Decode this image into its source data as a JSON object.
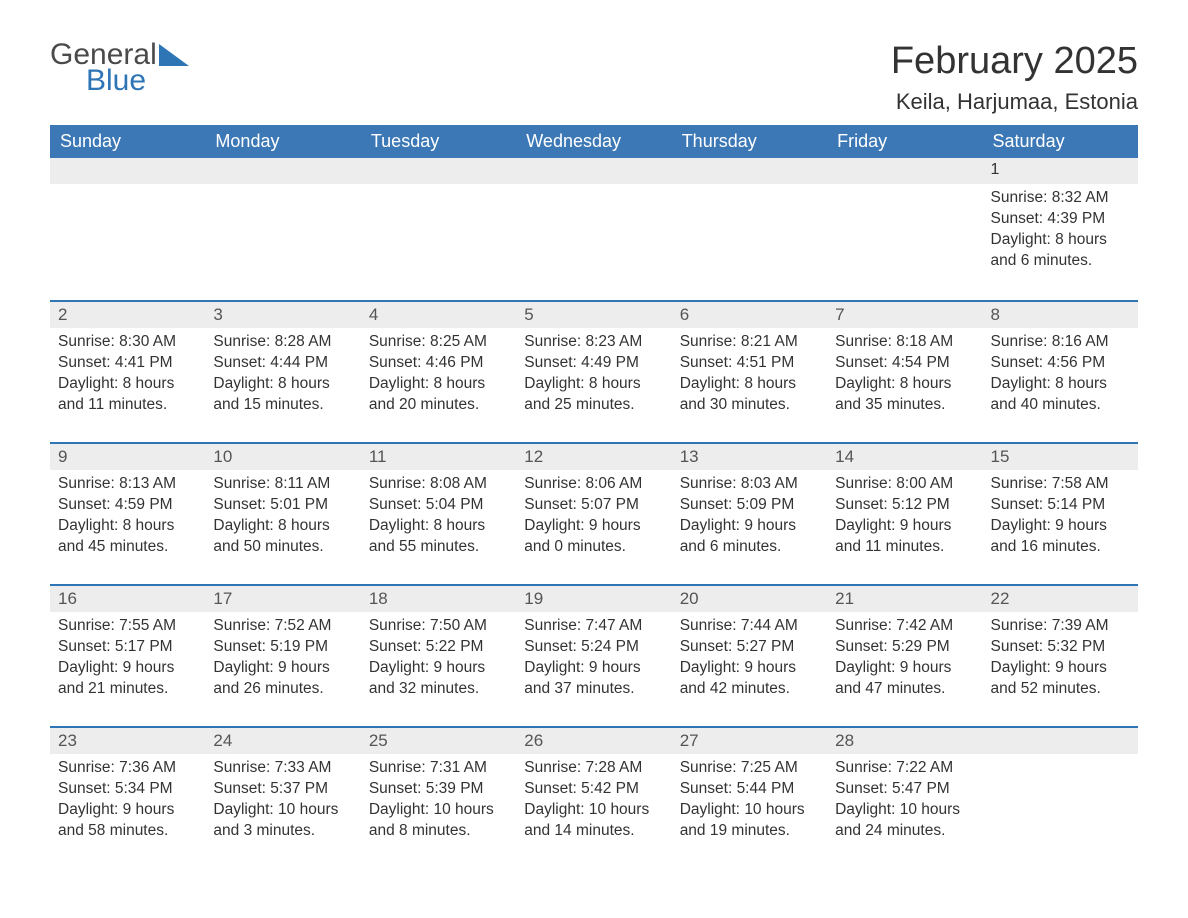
{
  "logo": {
    "word1": "General",
    "word2": "Blue"
  },
  "title": "February 2025",
  "location": "Keila, Harjumaa, Estonia",
  "colors": {
    "header_bg": "#3b78b5",
    "header_text": "#ffffff",
    "daybar_bg": "#ededed",
    "daybar_border": "#2e75b6",
    "body_text": "#333333",
    "page_bg": "#ffffff"
  },
  "weekdays": [
    "Sunday",
    "Monday",
    "Tuesday",
    "Wednesday",
    "Thursday",
    "Friday",
    "Saturday"
  ],
  "weeks": [
    [
      null,
      null,
      null,
      null,
      null,
      null,
      {
        "n": "1",
        "sunrise": "8:32 AM",
        "sunset": "4:39 PM",
        "daylight": "8 hours and 6 minutes."
      }
    ],
    [
      {
        "n": "2",
        "sunrise": "8:30 AM",
        "sunset": "4:41 PM",
        "daylight": "8 hours and 11 minutes."
      },
      {
        "n": "3",
        "sunrise": "8:28 AM",
        "sunset": "4:44 PM",
        "daylight": "8 hours and 15 minutes."
      },
      {
        "n": "4",
        "sunrise": "8:25 AM",
        "sunset": "4:46 PM",
        "daylight": "8 hours and 20 minutes."
      },
      {
        "n": "5",
        "sunrise": "8:23 AM",
        "sunset": "4:49 PM",
        "daylight": "8 hours and 25 minutes."
      },
      {
        "n": "6",
        "sunrise": "8:21 AM",
        "sunset": "4:51 PM",
        "daylight": "8 hours and 30 minutes."
      },
      {
        "n": "7",
        "sunrise": "8:18 AM",
        "sunset": "4:54 PM",
        "daylight": "8 hours and 35 minutes."
      },
      {
        "n": "8",
        "sunrise": "8:16 AM",
        "sunset": "4:56 PM",
        "daylight": "8 hours and 40 minutes."
      }
    ],
    [
      {
        "n": "9",
        "sunrise": "8:13 AM",
        "sunset": "4:59 PM",
        "daylight": "8 hours and 45 minutes."
      },
      {
        "n": "10",
        "sunrise": "8:11 AM",
        "sunset": "5:01 PM",
        "daylight": "8 hours and 50 minutes."
      },
      {
        "n": "11",
        "sunrise": "8:08 AM",
        "sunset": "5:04 PM",
        "daylight": "8 hours and 55 minutes."
      },
      {
        "n": "12",
        "sunrise": "8:06 AM",
        "sunset": "5:07 PM",
        "daylight": "9 hours and 0 minutes."
      },
      {
        "n": "13",
        "sunrise": "8:03 AM",
        "sunset": "5:09 PM",
        "daylight": "9 hours and 6 minutes."
      },
      {
        "n": "14",
        "sunrise": "8:00 AM",
        "sunset": "5:12 PM",
        "daylight": "9 hours and 11 minutes."
      },
      {
        "n": "15",
        "sunrise": "7:58 AM",
        "sunset": "5:14 PM",
        "daylight": "9 hours and 16 minutes."
      }
    ],
    [
      {
        "n": "16",
        "sunrise": "7:55 AM",
        "sunset": "5:17 PM",
        "daylight": "9 hours and 21 minutes."
      },
      {
        "n": "17",
        "sunrise": "7:52 AM",
        "sunset": "5:19 PM",
        "daylight": "9 hours and 26 minutes."
      },
      {
        "n": "18",
        "sunrise": "7:50 AM",
        "sunset": "5:22 PM",
        "daylight": "9 hours and 32 minutes."
      },
      {
        "n": "19",
        "sunrise": "7:47 AM",
        "sunset": "5:24 PM",
        "daylight": "9 hours and 37 minutes."
      },
      {
        "n": "20",
        "sunrise": "7:44 AM",
        "sunset": "5:27 PM",
        "daylight": "9 hours and 42 minutes."
      },
      {
        "n": "21",
        "sunrise": "7:42 AM",
        "sunset": "5:29 PM",
        "daylight": "9 hours and 47 minutes."
      },
      {
        "n": "22",
        "sunrise": "7:39 AM",
        "sunset": "5:32 PM",
        "daylight": "9 hours and 52 minutes."
      }
    ],
    [
      {
        "n": "23",
        "sunrise": "7:36 AM",
        "sunset": "5:34 PM",
        "daylight": "9 hours and 58 minutes."
      },
      {
        "n": "24",
        "sunrise": "7:33 AM",
        "sunset": "5:37 PM",
        "daylight": "10 hours and 3 minutes."
      },
      {
        "n": "25",
        "sunrise": "7:31 AM",
        "sunset": "5:39 PM",
        "daylight": "10 hours and 8 minutes."
      },
      {
        "n": "26",
        "sunrise": "7:28 AM",
        "sunset": "5:42 PM",
        "daylight": "10 hours and 14 minutes."
      },
      {
        "n": "27",
        "sunrise": "7:25 AM",
        "sunset": "5:44 PM",
        "daylight": "10 hours and 19 minutes."
      },
      {
        "n": "28",
        "sunrise": "7:22 AM",
        "sunset": "5:47 PM",
        "daylight": "10 hours and 24 minutes."
      },
      null
    ]
  ],
  "labels": {
    "sunrise": "Sunrise: ",
    "sunset": "Sunset: ",
    "daylight": "Daylight: "
  }
}
